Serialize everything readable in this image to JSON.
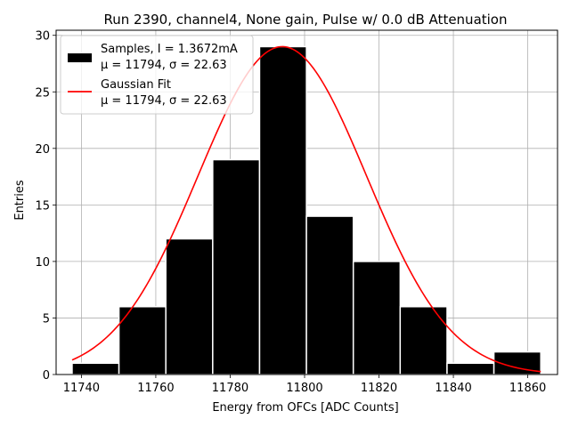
{
  "chart_data": {
    "type": "bar",
    "title": "Run 2390, channel4, None gain, Pulse w/ 0.0 dB Attenuation",
    "xlabel": "Energy from OFCs [ADC Counts]",
    "ylabel": "Entries",
    "xlim": [
      11733.2,
      11868.0
    ],
    "ylim": [
      0,
      30.45
    ],
    "xticks": [
      11740,
      11760,
      11780,
      11800,
      11820,
      11840,
      11860
    ],
    "yticks": [
      0,
      5,
      10,
      15,
      20,
      25,
      30
    ],
    "grid": true,
    "legend_position": "top-left",
    "bins": {
      "edges": [
        11737.5,
        11750.1,
        11762.7,
        11775.3,
        11787.9,
        11800.5,
        11813.1,
        11825.7,
        11838.3,
        11850.9,
        11863.5
      ],
      "counts": [
        1,
        6,
        12,
        19,
        29,
        14,
        10,
        6,
        1,
        2
      ]
    },
    "series": [
      {
        "name": "Samples, I = 1.3672mA",
        "stats": "μ = 11794, σ = 22.63",
        "kind": "histogram",
        "color": "#000000",
        "edge_color": "#ffffff"
      },
      {
        "name": "Gaussian Fit",
        "stats": "μ = 11794, σ = 22.63",
        "kind": "curve",
        "color": "#ff0000",
        "mu": 11794,
        "sigma": 22.63,
        "amplitude": 29,
        "x_range": [
          11737.5,
          11863.5
        ]
      }
    ]
  }
}
